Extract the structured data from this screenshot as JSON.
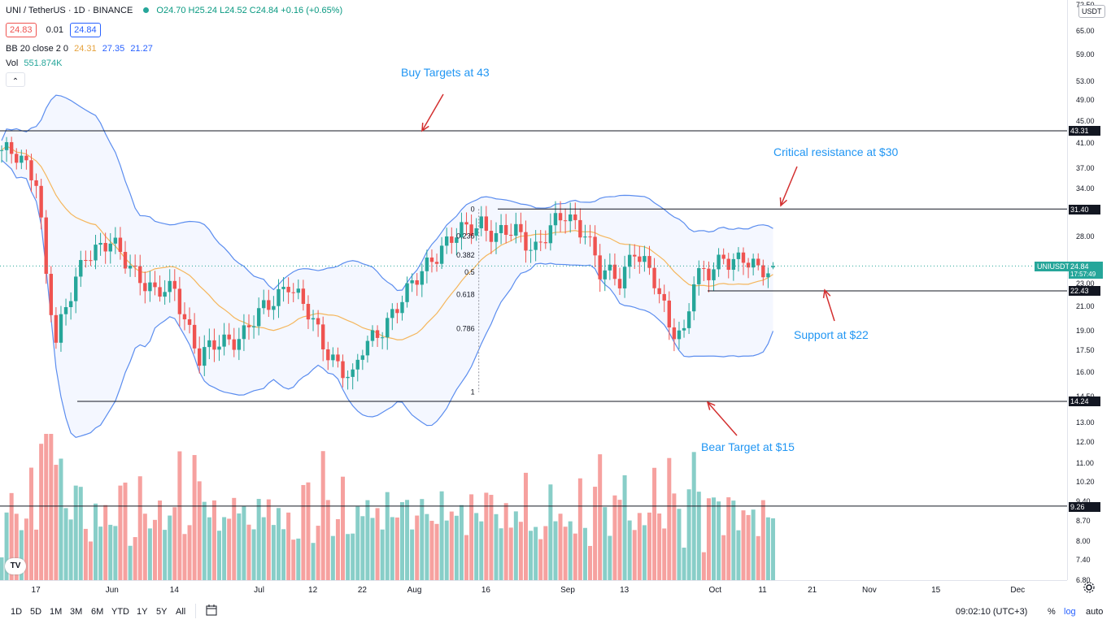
{
  "header": {
    "symbol": "UNI / TetherUS · 1D · BINANCE",
    "ohlc": "O24.70 H25.24 L24.52 C24.84 +0.16 (+0.65%)",
    "bid": "24.83",
    "spread": "0.01",
    "ask": "24.84",
    "bb_name": "BB 20 close 2 0",
    "bb_basis": "24.31",
    "bb_upper": "27.35",
    "bb_lower": "21.27",
    "vol_name": "Vol",
    "vol_value": "551.874K",
    "collapse_icon": "chevron-up-icon"
  },
  "currency_badge": "USDT",
  "colors": {
    "up": "#26a69a",
    "down": "#ef5350",
    "bb_band": "#5b8def",
    "bb_basis": "#f5b65c",
    "annotation": "#2196f3",
    "arrow": "#d32f2f",
    "fib_line": "#131722"
  },
  "annotations": {
    "buy": "Buy Targets at 43",
    "resistance": "Critical resistance at $30",
    "support": "Support at $22",
    "bear": "Bear Target at $15"
  },
  "price_tags": {
    "level_43": "43.31",
    "level_31": "31.40",
    "current_symbol": "UNIUSDT",
    "current": "24.84",
    "countdown": "17:57:49",
    "level_22": "22.43",
    "level_14": "14.24",
    "level_9": "9.26"
  },
  "fib_labels": [
    "0",
    "0.236",
    "0.382",
    "0.5",
    "0.618",
    "0.786",
    "1"
  ],
  "axis_price_labels": [
    "72.50",
    "65.00",
    "59.00",
    "53.00",
    "49.00",
    "45.00",
    "41.00",
    "37.00",
    "34.00",
    "28.00",
    "23.00",
    "21.00",
    "19.00",
    "17.50",
    "16.00",
    "14.50",
    "13.00",
    "12.00",
    "11.00",
    "10.20",
    "9.40",
    "8.70",
    "8.00",
    "7.40",
    "6.80"
  ],
  "time_labels": [
    "17",
    "Jun",
    "14",
    "Jul",
    "12",
    "22",
    "Aug",
    "16",
    "Sep",
    "13",
    "Oct",
    "11",
    "21",
    "Nov",
    "15",
    "Dec"
  ],
  "toolbar": {
    "ranges": [
      "1D",
      "5D",
      "1M",
      "3M",
      "6M",
      "YTD",
      "1Y",
      "5Y",
      "All"
    ],
    "calendar_icon": "calendar-icon",
    "clock": "09:02:10 (UTC+3)",
    "percent": "%",
    "log": "log",
    "auto": "auto",
    "settings_icon": "gear-icon"
  },
  "chart_data": {
    "type": "candlestick",
    "symbol": "UNI / TetherUS",
    "interval": "1D",
    "exchange": "BINANCE",
    "scale": "log",
    "y_range": [
      12.5,
      75
    ],
    "x_range": [
      "May 10",
      "Dec 20"
    ],
    "last": {
      "open": 24.7,
      "high": 25.24,
      "low": 24.52,
      "close": 24.84,
      "change": 0.16,
      "change_pct": 0.65
    },
    "bollinger": {
      "length": 20,
      "source": "close",
      "mult": 2,
      "basis": 24.31,
      "upper": 27.35,
      "lower": 21.27
    },
    "volume_last": "551.874K",
    "horizontal_levels": [
      43.31,
      31.4,
      22.43,
      14.24,
      9.26
    ],
    "fib_levels": [
      {
        "ratio": "0",
        "price": 31.4
      },
      {
        "ratio": "0.236",
        "price": 28.1
      },
      {
        "ratio": "0.382",
        "price": 26.0
      },
      {
        "ratio": "0.5",
        "price": 24.2
      },
      {
        "ratio": "0.618",
        "price": 22.1
      },
      {
        "ratio": "0.786",
        "price": 19.2
      },
      {
        "ratio": "1",
        "price": 14.8
      }
    ],
    "close_path": [
      {
        "date": "May 10",
        "close": 40.0
      },
      {
        "date": "May 14",
        "close": 38.0
      },
      {
        "date": "May 17",
        "close": 36.0
      },
      {
        "date": "May 19",
        "close": 24.0
      },
      {
        "date": "May 21",
        "close": 18.0
      },
      {
        "date": "May 24",
        "close": 22.0
      },
      {
        "date": "May 27",
        "close": 26.5
      },
      {
        "date": "Jun 1",
        "close": 27.0
      },
      {
        "date": "Jun 7",
        "close": 24.0
      },
      {
        "date": "Jun 10",
        "close": 22.0
      },
      {
        "date": "Jun 14",
        "close": 22.5
      },
      {
        "date": "Jun 19",
        "close": 17.0
      },
      {
        "date": "Jun 23",
        "close": 18.0
      },
      {
        "date": "Jun 28",
        "close": 19.0
      },
      {
        "date": "Jul 3",
        "close": 21.0
      },
      {
        "date": "Jul 7",
        "close": 23.5
      },
      {
        "date": "Jul 10",
        "close": 21.0
      },
      {
        "date": "Jul 14",
        "close": 18.0
      },
      {
        "date": "Jul 20",
        "close": 15.5
      },
      {
        "date": "Jul 22",
        "close": 17.5
      },
      {
        "date": "Jul 26",
        "close": 19.5
      },
      {
        "date": "Jul 31",
        "close": 22.0
      },
      {
        "date": "Aug 5",
        "close": 26.0
      },
      {
        "date": "Aug 10",
        "close": 28.0
      },
      {
        "date": "Aug 15",
        "close": 30.0
      },
      {
        "date": "Aug 18",
        "close": 28.0
      },
      {
        "date": "Aug 22",
        "close": 28.5
      },
      {
        "date": "Aug 26",
        "close": 27.0
      },
      {
        "date": "Sep 1",
        "close": 30.5
      },
      {
        "date": "Sep 5",
        "close": 29.0
      },
      {
        "date": "Sep 8",
        "close": 24.0
      },
      {
        "date": "Sep 12",
        "close": 23.5
      },
      {
        "date": "Sep 15",
        "close": 27.0
      },
      {
        "date": "Sep 19",
        "close": 23.0
      },
      {
        "date": "Sep 22",
        "close": 19.5
      },
      {
        "date": "Sep 25",
        "close": 19.0
      },
      {
        "date": "Sep 27",
        "close": 23.5
      },
      {
        "date": "Sep 30",
        "close": 23.8
      },
      {
        "date": "Oct 3",
        "close": 26.0
      },
      {
        "date": "Oct 7",
        "close": 25.5
      },
      {
        "date": "Oct 10",
        "close": 24.0
      },
      {
        "date": "Oct 13",
        "close": 24.84
      }
    ]
  }
}
